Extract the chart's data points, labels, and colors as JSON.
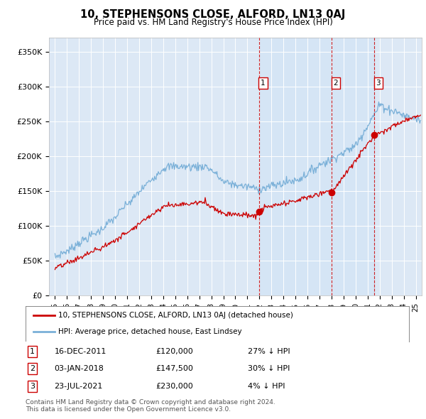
{
  "title": "10, STEPHENSONS CLOSE, ALFORD, LN13 0AJ",
  "subtitle": "Price paid vs. HM Land Registry's House Price Index (HPI)",
  "ylabel_ticks": [
    "£0",
    "£50K",
    "£100K",
    "£150K",
    "£200K",
    "£250K",
    "£300K",
    "£350K"
  ],
  "ytick_values": [
    0,
    50000,
    100000,
    150000,
    200000,
    250000,
    300000,
    350000
  ],
  "ylim": [
    0,
    370000
  ],
  "xlim_start": 1994.5,
  "xlim_end": 2025.5,
  "background_color": "#ffffff",
  "plot_bg_color": "#dce8f5",
  "shade_color": "#d0e4f5",
  "grid_color": "#ffffff",
  "hpi_color": "#7ab0d8",
  "price_color": "#cc0000",
  "sale_marker_color": "#cc0000",
  "vline_color": "#cc0000",
  "transactions": [
    {
      "id": 1,
      "date": "16-DEC-2011",
      "x": 2011.96,
      "price": 120000,
      "label": "£120,000",
      "pct": "27% ↓ HPI"
    },
    {
      "id": 2,
      "date": "03-JAN-2018",
      "x": 2018.01,
      "price": 147500,
      "label": "£147,500",
      "pct": "30% ↓ HPI"
    },
    {
      "id": 3,
      "date": "23-JUL-2021",
      "x": 2021.55,
      "price": 230000,
      "label": "£230,000",
      "pct": "4% ↓ HPI"
    }
  ],
  "legend_entries": [
    {
      "label": "10, STEPHENSONS CLOSE, ALFORD, LN13 0AJ (detached house)",
      "color": "#cc0000"
    },
    {
      "label": "HPI: Average price, detached house, East Lindsey",
      "color": "#7ab0d8"
    }
  ],
  "footnote1": "Contains HM Land Registry data © Crown copyright and database right 2024.",
  "footnote2": "This data is licensed under the Open Government Licence v3.0.",
  "xtick_years": [
    1995,
    1996,
    1997,
    1998,
    1999,
    2000,
    2001,
    2002,
    2003,
    2004,
    2005,
    2006,
    2007,
    2008,
    2009,
    2010,
    2011,
    2012,
    2013,
    2014,
    2015,
    2016,
    2017,
    2018,
    2019,
    2020,
    2021,
    2022,
    2023,
    2024,
    2025
  ]
}
